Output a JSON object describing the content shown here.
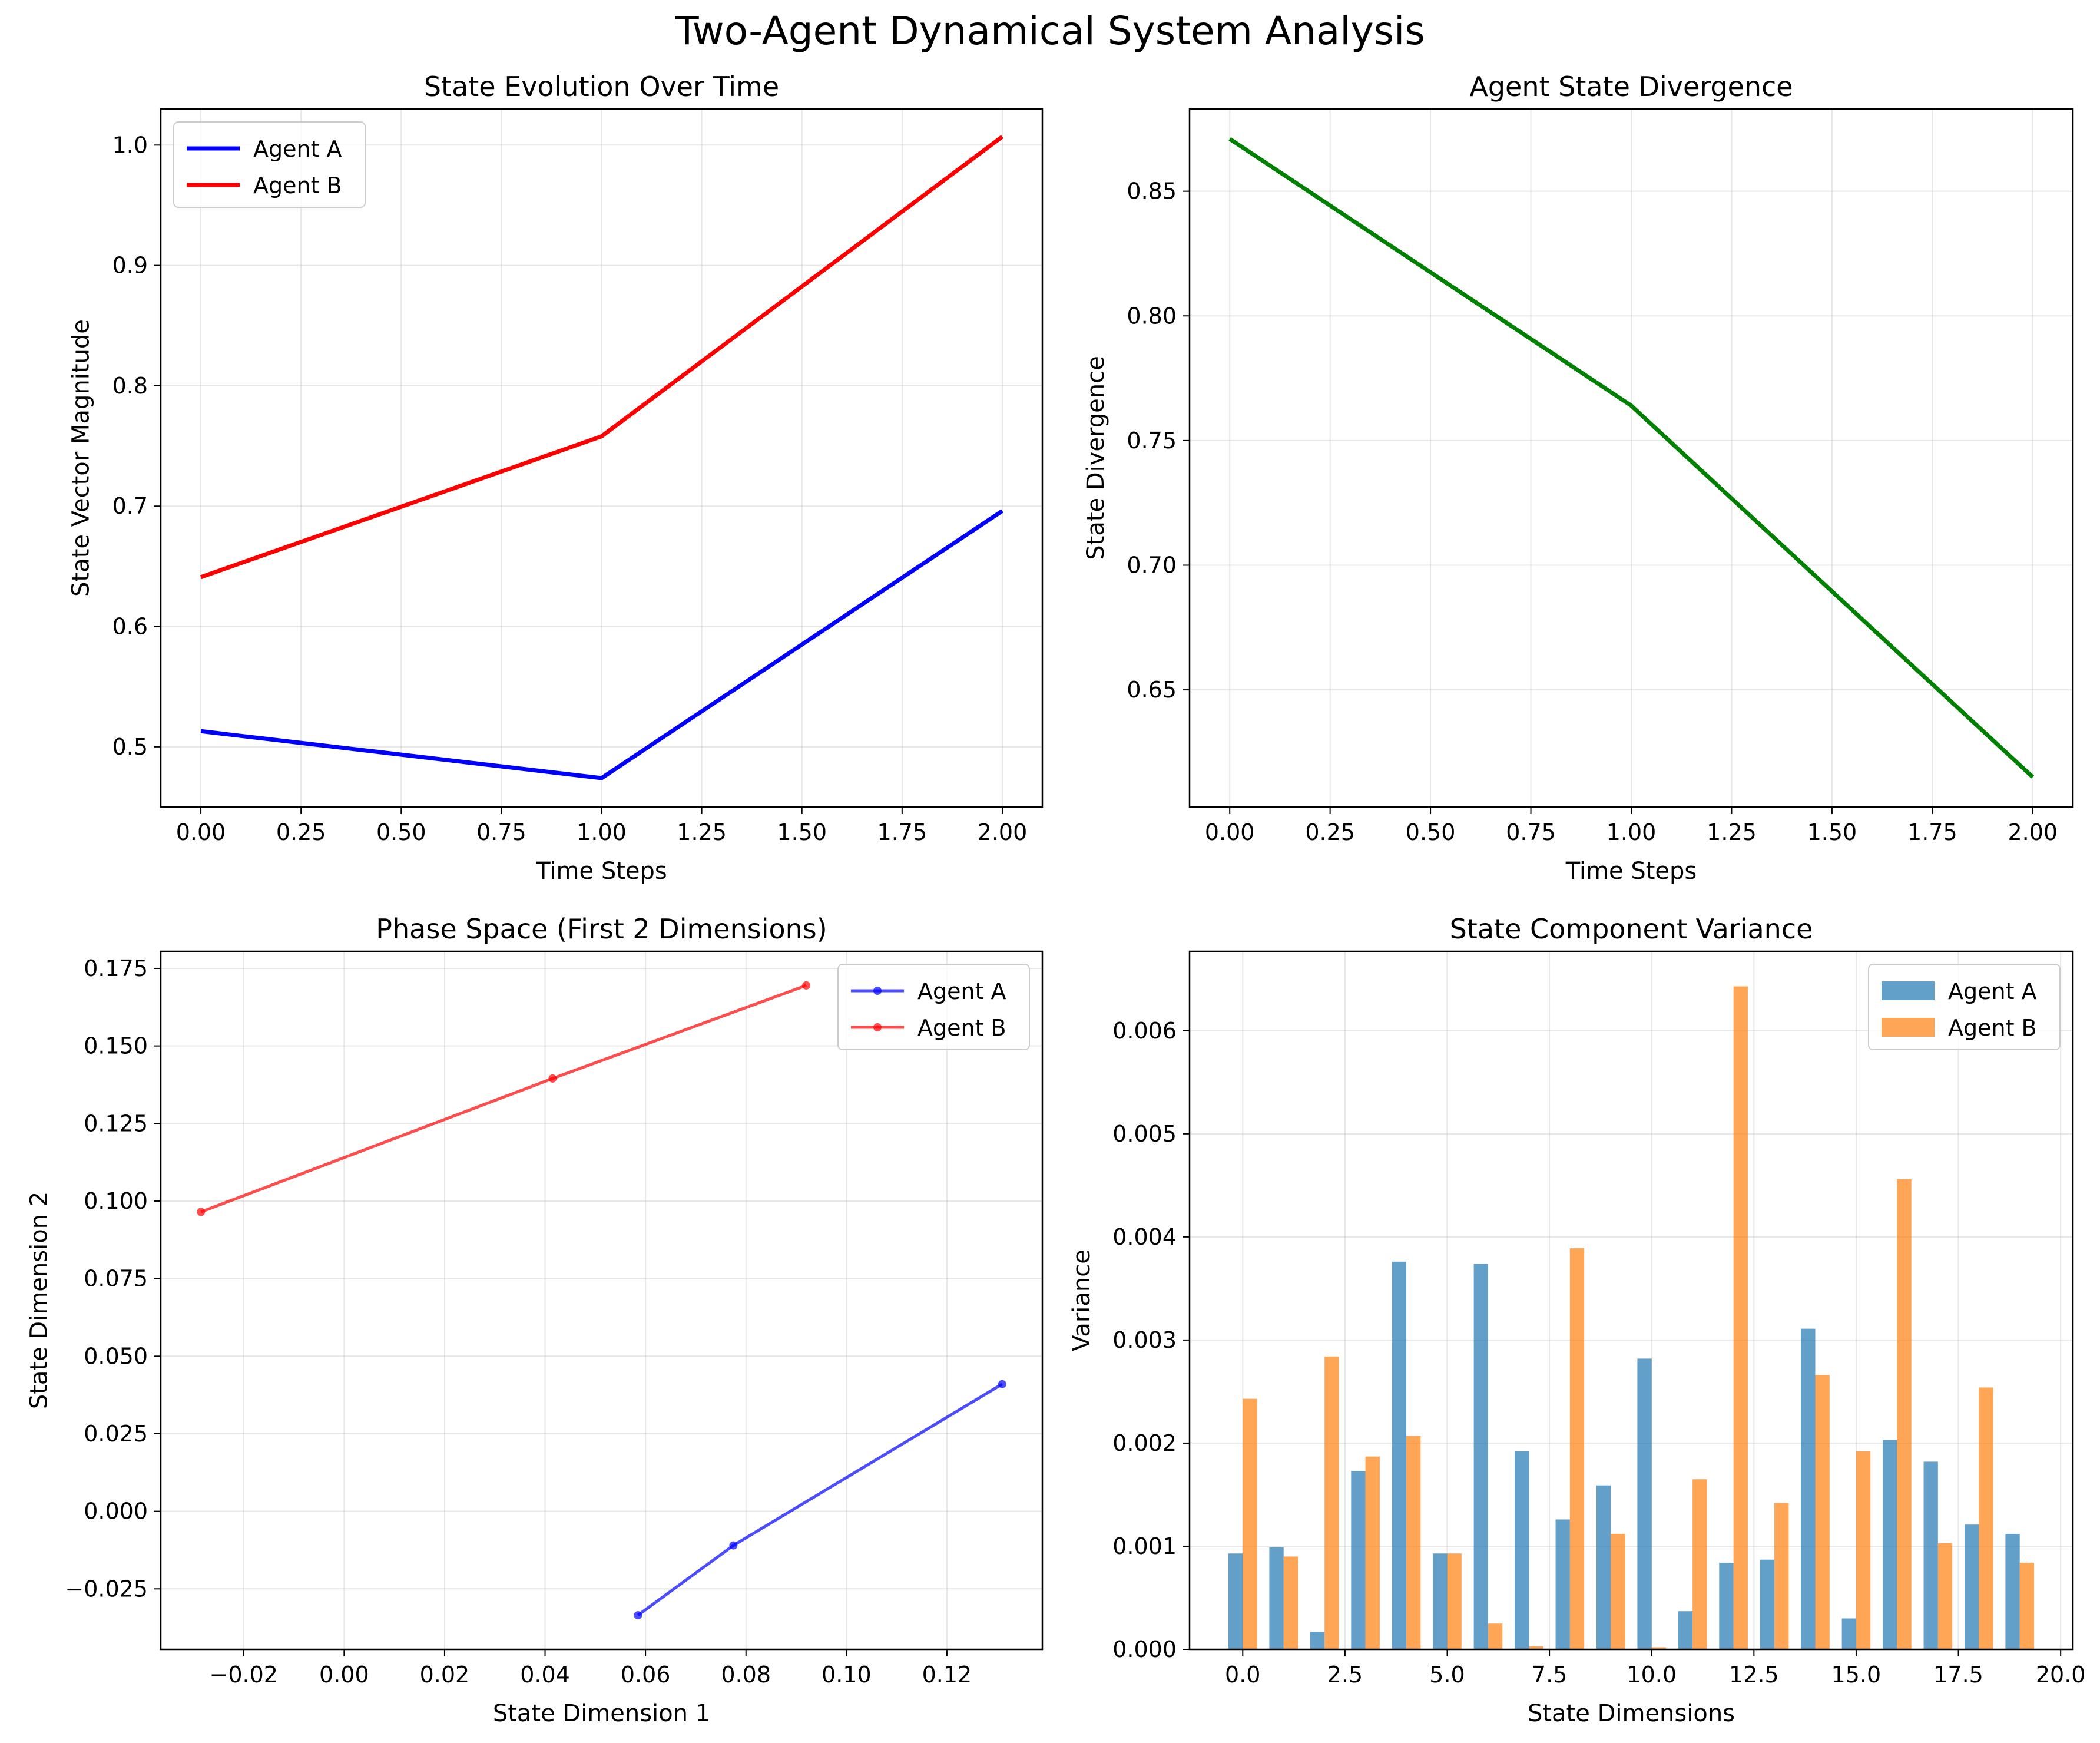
{
  "suptitle": "Two-Agent Dynamical System Analysis",
  "chart_data": [
    {
      "type": "line",
      "title": "State Evolution Over Time",
      "xlabel": "Time Steps",
      "ylabel": "State Vector Magnitude",
      "xlim": [
        -0.1,
        2.1
      ],
      "ylim": [
        0.45,
        1.03
      ],
      "xticks": [
        "0.00",
        "0.25",
        "0.50",
        "0.75",
        "1.00",
        "1.25",
        "1.50",
        "1.75",
        "2.00"
      ],
      "yticks": [
        "0.5",
        "0.6",
        "0.7",
        "0.8",
        "0.9",
        "1.0"
      ],
      "grid": true,
      "legend": "upper left",
      "x": [
        0,
        1,
        2
      ],
      "series": [
        {
          "name": "Agent A",
          "color": "#0000ff",
          "values": [
            0.513,
            0.474,
            0.696
          ]
        },
        {
          "name": "Agent B",
          "color": "#ff0000",
          "values": [
            0.641,
            0.758,
            1.007
          ]
        }
      ]
    },
    {
      "type": "line",
      "title": "Agent State Divergence",
      "xlabel": "Time Steps",
      "ylabel": "State Divergence",
      "xlim": [
        -0.1,
        2.1
      ],
      "ylim": [
        0.603,
        0.883
      ],
      "xticks": [
        "0.00",
        "0.25",
        "0.50",
        "0.75",
        "1.00",
        "1.25",
        "1.50",
        "1.75",
        "2.00"
      ],
      "yticks": [
        "0.65",
        "0.70",
        "0.75",
        "0.80",
        "0.85"
      ],
      "grid": true,
      "x": [
        0,
        1,
        2
      ],
      "series": [
        {
          "color": "#008000",
          "values": [
            0.871,
            0.764,
            0.615
          ]
        }
      ]
    },
    {
      "type": "line",
      "title": "Phase Space (First 2 Dimensions)",
      "xlabel": "State Dimension 1",
      "ylabel": "State Dimension 2",
      "xlim": [
        -0.0365,
        0.139
      ],
      "ylim": [
        -0.0445,
        0.1805
      ],
      "xticks": [
        "−0.02",
        "0.00",
        "0.02",
        "0.04",
        "0.06",
        "0.08",
        "0.10",
        "0.12"
      ],
      "yticks": [
        "−0.025",
        "0.000",
        "0.025",
        "0.050",
        "0.075",
        "0.100",
        "0.125",
        "0.150",
        "0.175"
      ],
      "grid": true,
      "legend": "upper right",
      "series": [
        {
          "name": "Agent A",
          "color": "#0000ff",
          "x": [
            0.0585,
            0.0775,
            0.131
          ],
          "y": [
            -0.0335,
            -0.011,
            0.041
          ]
        },
        {
          "name": "Agent B",
          "color": "#ff0000",
          "x": [
            -0.0285,
            0.0415,
            0.092
          ],
          "y": [
            0.0965,
            0.1395,
            0.1695
          ]
        }
      ]
    },
    {
      "type": "bar",
      "title": "State Component Variance",
      "xlabel": "State Dimensions",
      "ylabel": "Variance",
      "xlim": [
        -1.3,
        20.3
      ],
      "ylim": [
        0,
        0.00677
      ],
      "xticks": [
        "0.0",
        "2.5",
        "5.0",
        "7.5",
        "10.0",
        "12.5",
        "15.0",
        "17.5",
        "20.0"
      ],
      "yticks": [
        "0.000",
        "0.001",
        "0.002",
        "0.003",
        "0.004",
        "0.005",
        "0.006"
      ],
      "grid": true,
      "legend": "upper right",
      "categories": [
        0,
        1,
        2,
        3,
        4,
        5,
        6,
        7,
        8,
        9,
        10,
        11,
        12,
        13,
        14,
        15,
        16,
        17,
        18,
        19
      ],
      "series": [
        {
          "name": "Agent A",
          "color": "#1f77b4",
          "values": [
            0.00093,
            0.00099,
            0.00017,
            0.00173,
            0.00376,
            0.00093,
            0.00374,
            0.00192,
            0.00126,
            0.00159,
            0.00282,
            0.00037,
            0.00084,
            0.00087,
            0.00311,
            0.0003,
            0.00203,
            0.00182,
            0.00121,
            0.00112
          ]
        },
        {
          "name": "Agent B",
          "color": "#ff7f0e",
          "values": [
            0.00243,
            0.0009,
            0.00284,
            0.00187,
            0.00207,
            0.00093,
            0.00025,
            3e-05,
            0.00389,
            0.00112,
            2e-05,
            0.00165,
            0.00643,
            0.00142,
            0.00266,
            0.00192,
            0.00456,
            0.00103,
            0.00254,
            0.00084
          ]
        }
      ]
    }
  ]
}
